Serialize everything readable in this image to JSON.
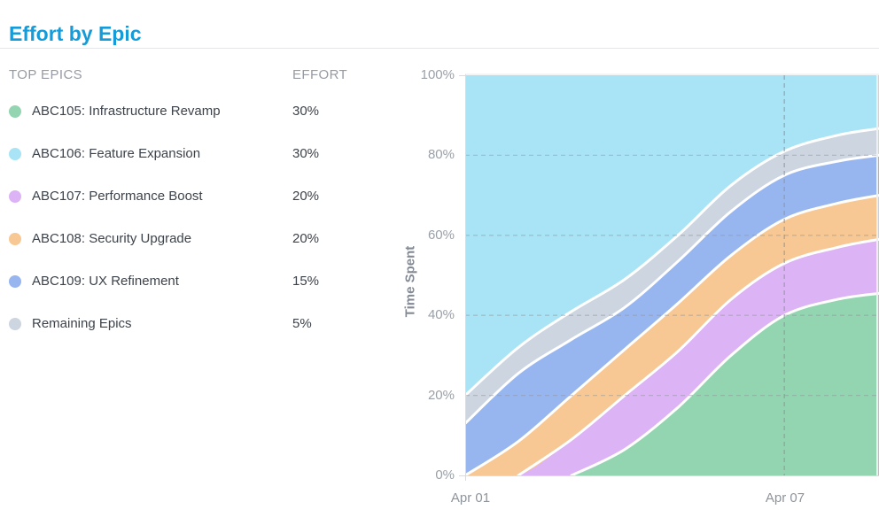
{
  "page": {
    "title": "Effort by Epic"
  },
  "colors": {
    "accent": "#149bd8",
    "axis": "#d8dbdf",
    "top_border": "#e5e7ea",
    "right_border": "#edeff1",
    "grid": "#8d939c",
    "separator": "#ffffff"
  },
  "legend": {
    "header_epics": "TOP EPICS",
    "header_effort": "EFFORT",
    "items": [
      {
        "label": "ABC105: Infrastructure Revamp",
        "effort": "30%",
        "color": "#93d5b0"
      },
      {
        "label": "ABC106: Feature Expansion",
        "effort": "30%",
        "color": "#a8e4f6"
      },
      {
        "label": "ABC107: Performance Boost",
        "effort": "20%",
        "color": "#dcb3f4"
      },
      {
        "label": "ABC108: Security Upgrade",
        "effort": "20%",
        "color": "#f7c893"
      },
      {
        "label": "ABC109: UX Refinement",
        "effort": "15%",
        "color": "#97b6f0"
      },
      {
        "label": "Remaining Epics",
        "effort": "5%",
        "color": "#ccd5e0"
      }
    ]
  },
  "chart_data": {
    "type": "area",
    "stacked": true,
    "title": "Effort by Epic",
    "xlabel": "",
    "ylabel": "Time Spent",
    "ylim": [
      0,
      100
    ],
    "y_ticks": [
      "100%",
      "80%",
      "60%",
      "40%",
      "20%",
      "0%"
    ],
    "y_tick_values": [
      100,
      80,
      60,
      40,
      20,
      0
    ],
    "x_tick_labels": [
      {
        "day": 0,
        "label": "Apr 01"
      },
      {
        "day": 6,
        "label": "Apr 07"
      }
    ],
    "grid": {
      "horizontal_pct": [
        20,
        40,
        60,
        80
      ],
      "vertical_days": [
        6
      ],
      "style": "dashed"
    },
    "x_days": [
      0,
      1,
      2,
      3,
      4,
      5,
      6,
      7,
      7.78
    ],
    "series_bottom_to_top": [
      {
        "name": "ABC105: Infrastructure Revamp",
        "color": "#93d5b0",
        "cumulative_top_pct": [
          0,
          0,
          0,
          6.5,
          17,
          30,
          40,
          44,
          45.5
        ]
      },
      {
        "name": "ABC107: Performance Boost",
        "color": "#dcb3f4",
        "cumulative_top_pct": [
          0,
          0,
          9,
          20,
          31,
          44,
          53,
          57,
          59
        ]
      },
      {
        "name": "ABC108: Security Upgrade",
        "color": "#f7c893",
        "cumulative_top_pct": [
          0,
          8.5,
          20,
          31.5,
          43,
          55,
          64,
          68,
          70
        ]
      },
      {
        "name": "ABC109: UX Refinement",
        "color": "#97b6f0",
        "cumulative_top_pct": [
          13,
          25.5,
          34,
          42,
          53.5,
          66,
          75,
          78.5,
          80
        ]
      },
      {
        "name": "Remaining Epics",
        "color": "#ccd5e0",
        "cumulative_top_pct": [
          20,
          32,
          41,
          49,
          60,
          72.5,
          81,
          85,
          86.7
        ]
      },
      {
        "name": "ABC106: Feature Expansion",
        "color": "#a8e4f6",
        "cumulative_top_pct": [
          100,
          100,
          100,
          100,
          100,
          100,
          100,
          100,
          100
        ]
      }
    ]
  }
}
